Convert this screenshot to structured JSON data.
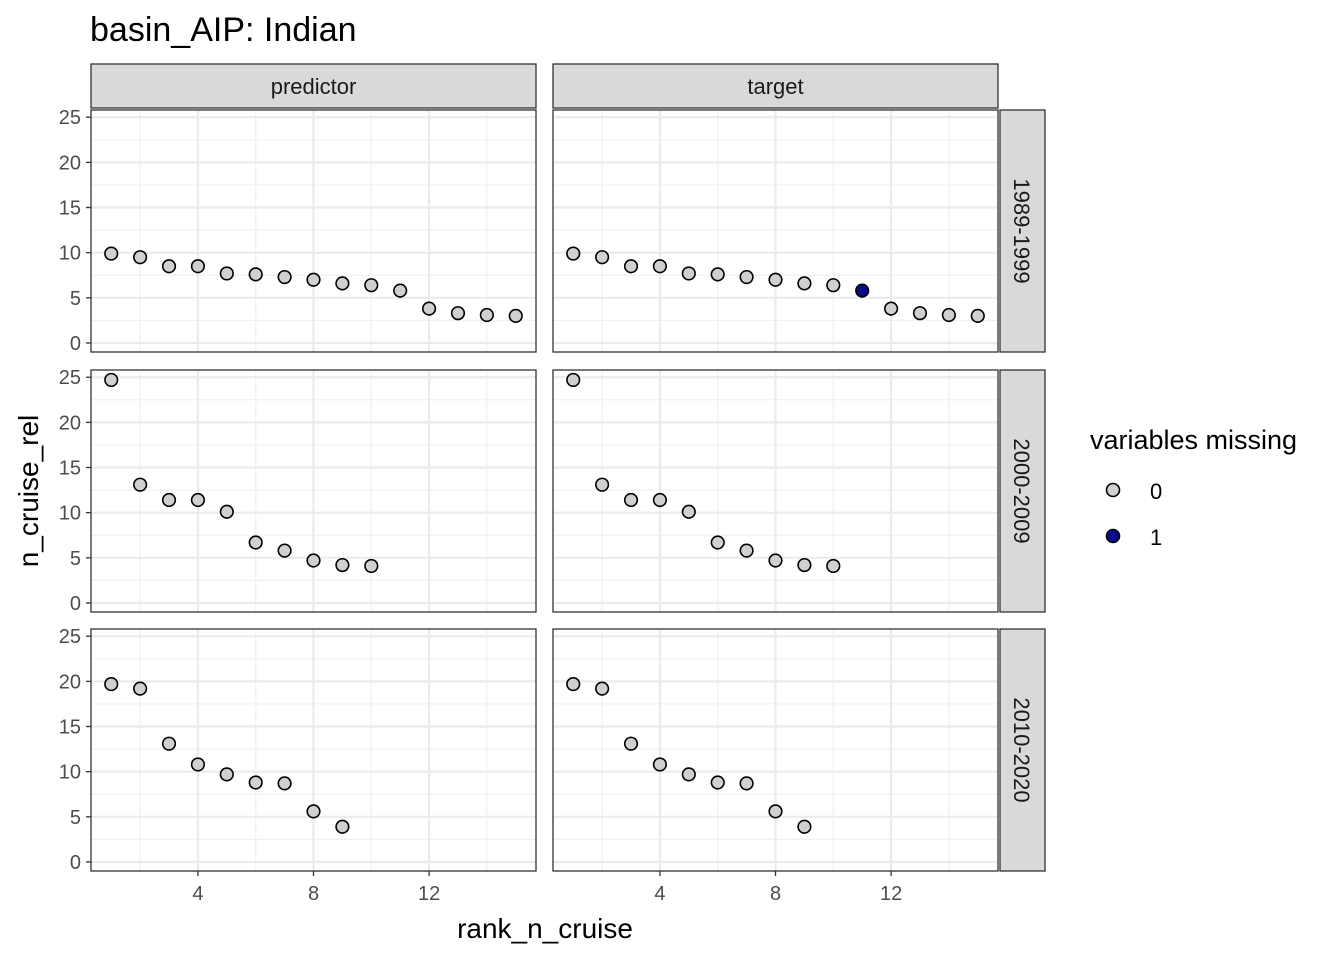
{
  "chart_data": {
    "type": "scatter",
    "title": "basin_AIP: Indian",
    "xlabel": "rank_n_cruise",
    "ylabel": "n_cruise_rel",
    "xlim": [
      0.3,
      15.7
    ],
    "ylim": [
      -1,
      25.8
    ],
    "x_ticks": [
      4,
      8,
      12
    ],
    "y_ticks": [
      0,
      5,
      10,
      15,
      20,
      25
    ],
    "grid": true,
    "facet_columns": [
      "predictor",
      "target"
    ],
    "facet_rows": [
      "1989-1999",
      "2000-2009",
      "2010-2020"
    ],
    "legend": {
      "title": "variables missing",
      "position": "right",
      "entries": [
        {
          "label": "0",
          "color": "#d0d0d0"
        },
        {
          "label": "1",
          "color": "#0a0a8c"
        }
      ]
    },
    "panels": [
      {
        "column": "predictor",
        "row": "1989-1999",
        "x": [
          1,
          2,
          3,
          4,
          5,
          6,
          7,
          8,
          9,
          10,
          11,
          12,
          13,
          14,
          15
        ],
        "y": [
          9.9,
          9.5,
          8.5,
          8.5,
          7.7,
          7.6,
          7.3,
          7.0,
          6.6,
          6.4,
          5.8,
          3.8,
          3.3,
          3.1,
          3.0
        ],
        "missing": [
          0,
          0,
          0,
          0,
          0,
          0,
          0,
          0,
          0,
          0,
          0,
          0,
          0,
          0,
          0
        ]
      },
      {
        "column": "target",
        "row": "1989-1999",
        "x": [
          1,
          2,
          3,
          4,
          5,
          6,
          7,
          8,
          9,
          10,
          11,
          12,
          13,
          14,
          15
        ],
        "y": [
          9.9,
          9.5,
          8.5,
          8.5,
          7.7,
          7.6,
          7.3,
          7.0,
          6.6,
          6.4,
          5.8,
          3.8,
          3.3,
          3.1,
          3.0
        ],
        "missing": [
          0,
          0,
          0,
          0,
          0,
          0,
          0,
          0,
          0,
          0,
          1,
          0,
          0,
          0,
          0
        ]
      },
      {
        "column": "predictor",
        "row": "2000-2009",
        "x": [
          1,
          2,
          3,
          4,
          5,
          6,
          7,
          8,
          9,
          10
        ],
        "y": [
          24.7,
          13.1,
          11.4,
          11.4,
          10.1,
          6.7,
          5.8,
          4.7,
          4.2,
          4.1
        ],
        "missing": [
          0,
          0,
          0,
          0,
          0,
          0,
          0,
          0,
          0,
          0
        ]
      },
      {
        "column": "target",
        "row": "2000-2009",
        "x": [
          1,
          2,
          3,
          4,
          5,
          6,
          7,
          8,
          9,
          10
        ],
        "y": [
          24.7,
          13.1,
          11.4,
          11.4,
          10.1,
          6.7,
          5.8,
          4.7,
          4.2,
          4.1
        ],
        "missing": [
          0,
          0,
          0,
          0,
          0,
          0,
          0,
          0,
          0,
          0
        ]
      },
      {
        "column": "predictor",
        "row": "2010-2020",
        "x": [
          1,
          2,
          3,
          4,
          5,
          6,
          7,
          8,
          9
        ],
        "y": [
          19.7,
          19.2,
          13.1,
          10.8,
          9.7,
          8.8,
          8.7,
          5.6,
          3.9
        ],
        "missing": [
          0,
          0,
          0,
          0,
          0,
          0,
          0,
          0,
          0
        ]
      },
      {
        "column": "target",
        "row": "2010-2020",
        "x": [
          1,
          2,
          3,
          4,
          5,
          6,
          7,
          8,
          9
        ],
        "y": [
          19.7,
          19.2,
          13.1,
          10.8,
          9.7,
          8.8,
          8.7,
          5.6,
          3.9
        ],
        "missing": [
          0,
          0,
          0,
          0,
          0,
          0,
          0,
          0,
          0
        ]
      }
    ]
  }
}
